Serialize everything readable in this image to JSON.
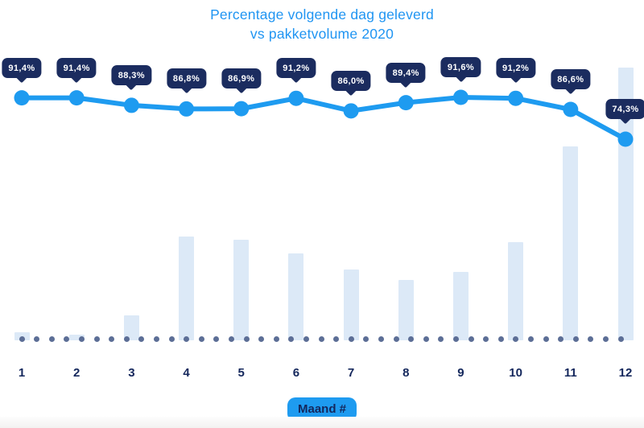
{
  "title": {
    "line1": "Percentage volgende dag geleverd",
    "line2": "vs pakketvolume 2020"
  },
  "x_axis": {
    "label_badge": "Maand #",
    "tick_labels": [
      "1",
      "2",
      "3",
      "4",
      "5",
      "6",
      "7",
      "8",
      "9",
      "10",
      "11",
      "12"
    ]
  },
  "chart_data": {
    "type": "combo",
    "title": "Percentage volgende dag geleverd vs pakketvolume 2020",
    "xlabel": "Maand #",
    "ylabel": "",
    "categories": [
      "1",
      "2",
      "3",
      "4",
      "5",
      "6",
      "7",
      "8",
      "9",
      "10",
      "11",
      "12"
    ],
    "series": [
      {
        "name": "Percentage volgende dag geleverd",
        "type": "line",
        "values": [
          91.4,
          91.4,
          88.3,
          86.8,
          86.9,
          91.2,
          86.0,
          89.4,
          91.6,
          91.2,
          86.6,
          74.3
        ],
        "labels": [
          "91,4%",
          "91,4%",
          "88,3%",
          "86,8%",
          "86,9%",
          "91,2%",
          "86,0%",
          "89,4%",
          "91,6%",
          "91,2%",
          "86,6%",
          "74,3%"
        ],
        "color": "#1E9BF0"
      },
      {
        "name": "Pakketvolume 2020",
        "type": "bar",
        "values_relative_max100": [
          3,
          2,
          9,
          38,
          37,
          32,
          26,
          22,
          25,
          36,
          71,
          100
        ],
        "color": "#DCE9F7"
      }
    ],
    "axes_visible": false,
    "grid": false,
    "legend": "none",
    "dotted_baseline": true,
    "data_labels": "permanent tooltips above each line point, decimal comma format"
  },
  "colors": {
    "title_text": "#2095F2",
    "line_accent": "#1E9BF0",
    "tooltip_bg": "#1B2C5F",
    "tooltip_text": "#FFFFFF",
    "bar_fill": "#DCE9F7",
    "baseline_dot": "#5C6E96",
    "axis_label_text": "#14275C",
    "month_badge_bg": "#1E9BF0",
    "background": "#FFFFFF"
  }
}
